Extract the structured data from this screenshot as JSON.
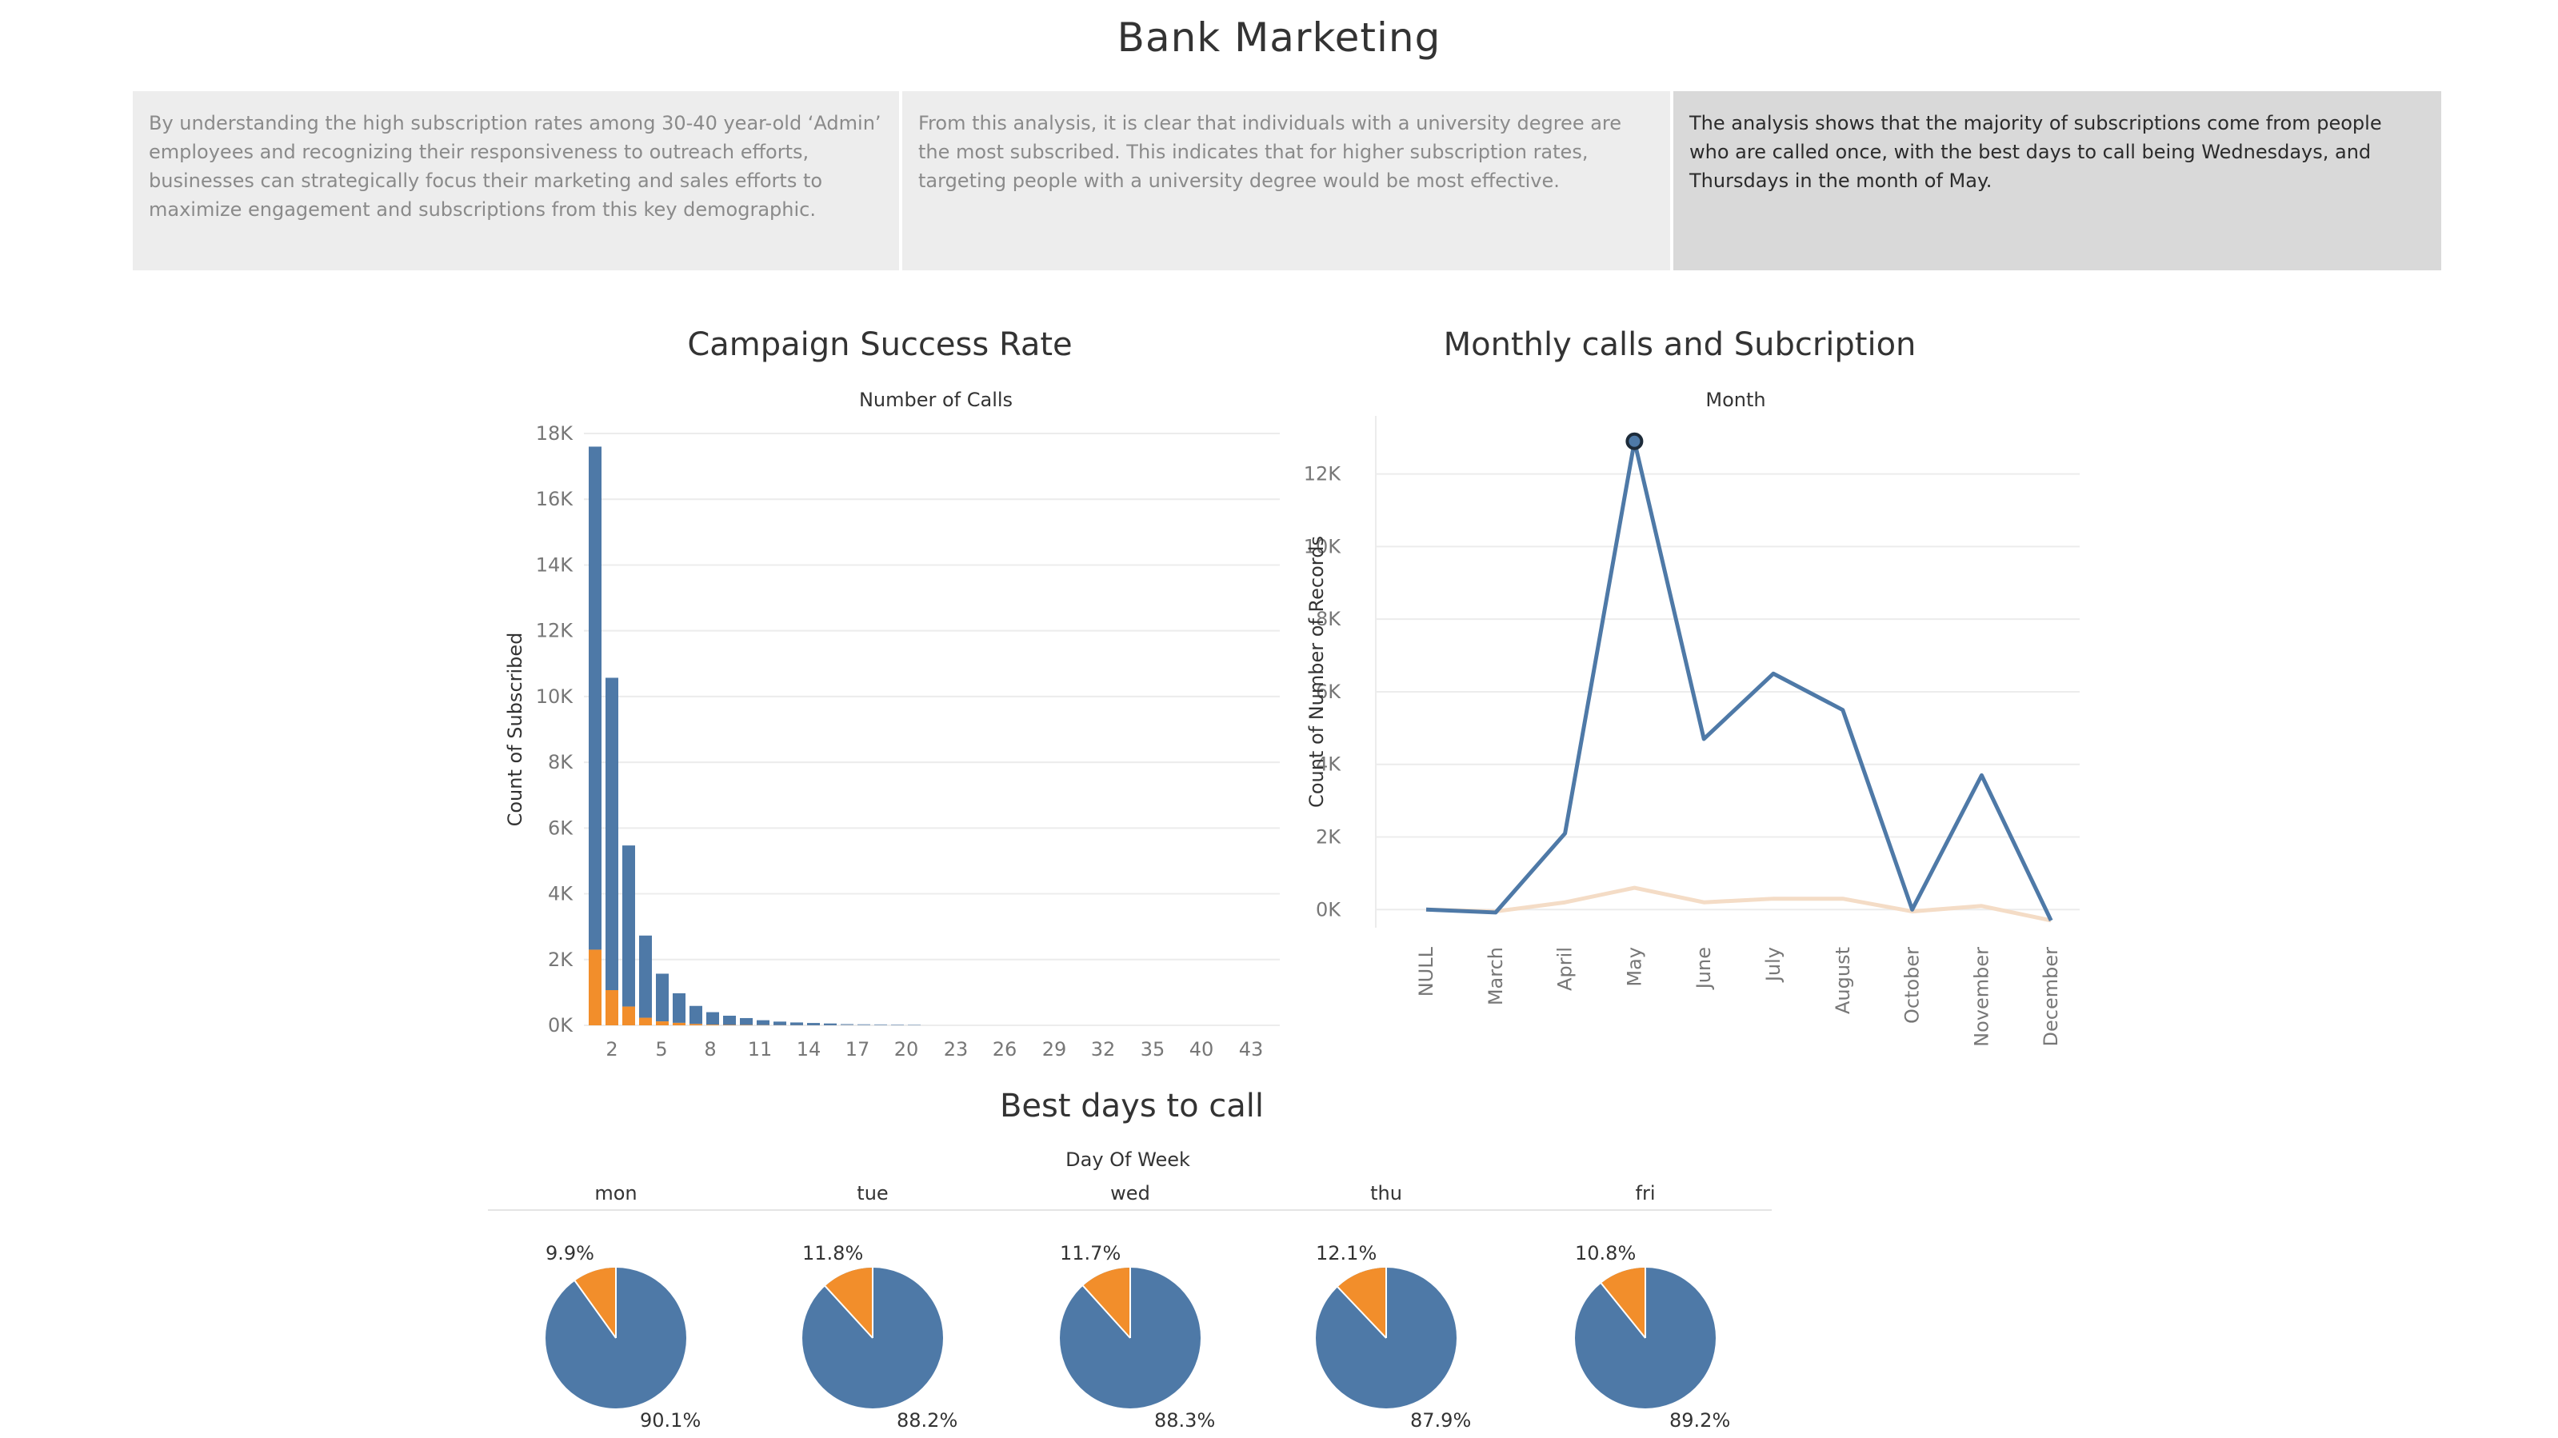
{
  "page": {
    "title": "Bank Marketing"
  },
  "insights": [
    {
      "text": "By understanding the high subscription rates among 30-40 year-old ‘Admin’ employees and recognizing their responsiveness to outreach efforts, businesses can strategically focus their marketing and sales efforts to maximize engagement and subscriptions from this key demographic."
    },
    {
      "text": "From this analysis, it is clear that individuals with a university degree are the most subscribed. This indicates that for higher subscription rates, targeting people with a university degree would be most effective."
    },
    {
      "text": "The analysis shows that the majority of subscriptions come from people who are called once, with the best days to call being Wednesdays, and Thursdays in the month of May."
    }
  ],
  "colors": {
    "blue": "#4e79a7",
    "orange": "#f28e2b",
    "light_peach": "#f4dcc6",
    "grid": "#ececec"
  },
  "chart_data": [
    {
      "type": "bar",
      "title": "Campaign Success Rate",
      "xlabel": "Number of Calls",
      "ylabel": "Count of Subscribed",
      "ylim": [
        0,
        18000
      ],
      "yticks": [
        "0K",
        "2K",
        "4K",
        "6K",
        "8K",
        "10K",
        "12K",
        "14K",
        "16K",
        "18K"
      ],
      "xticks": [
        "2",
        "5",
        "8",
        "11",
        "14",
        "17",
        "20",
        "23",
        "26",
        "29",
        "32",
        "35",
        "40",
        "43"
      ],
      "categories": [
        1,
        2,
        3,
        4,
        5,
        6,
        7,
        8,
        9,
        10,
        11,
        12,
        13,
        14,
        15,
        16,
        17,
        18,
        19,
        20
      ],
      "series": [
        {
          "values": [
            15300,
            9500,
            4900,
            2500,
            1450,
            900,
            550,
            380,
            280,
            210,
            150,
            110,
            85,
            70,
            55,
            45,
            35,
            30,
            25,
            20
          ]
        },
        {
          "values": [
            2300,
            1070,
            570,
            230,
            120,
            75,
            40,
            20,
            12,
            10,
            5,
            3,
            2,
            1,
            1,
            1,
            0,
            0,
            0,
            0
          ]
        }
      ],
      "legend": "none"
    },
    {
      "type": "line",
      "title": "Monthly calls and  Subcription",
      "xlabel": "Month",
      "ylabel": "Count of Number of Records",
      "ylim": [
        0,
        13000
      ],
      "yticks": [
        "0K",
        "2K",
        "4K",
        "6K",
        "8K",
        "10K",
        "12K"
      ],
      "categories": [
        "NULL",
        "March",
        "April",
        "May",
        "June",
        "July",
        "August",
        "October",
        "November",
        "December"
      ],
      "series": [
        {
          "values": [
            0,
            -80,
            2100,
            12900,
            4700,
            6500,
            5500,
            0,
            3700,
            -300
          ]
        },
        {
          "values": [
            0,
            -50,
            200,
            600,
            200,
            300,
            300,
            -50,
            100,
            -300
          ]
        }
      ]
    },
    {
      "type": "pie",
      "title": "Best days to call",
      "xlabel": "Day Of Week",
      "categories": [
        "mon",
        "tue",
        "wed",
        "thu",
        "fri"
      ],
      "series": [
        {
          "values": [
            9.9,
            11.8,
            11.7,
            12.1,
            10.8
          ],
          "labels": [
            "9.9%",
            "11.8%",
            "11.7%",
            "12.1%",
            "10.8%"
          ]
        },
        {
          "values": [
            90.1,
            88.2,
            88.3,
            87.9,
            89.2
          ],
          "labels": [
            "90.1%",
            "88.2%",
            "88.3%",
            "87.9%",
            "89.2%"
          ]
        }
      ]
    }
  ]
}
